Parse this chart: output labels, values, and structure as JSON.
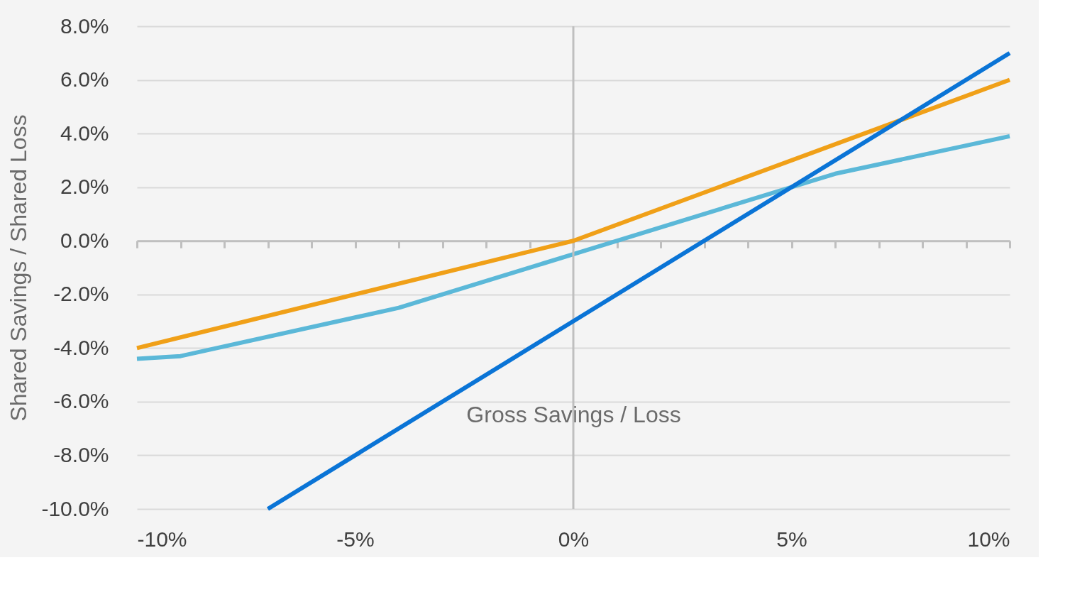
{
  "chart_data": {
    "type": "line",
    "xlabel": "Gross Savings / Loss",
    "ylabel": "Shared Savings / Shared Loss",
    "xlim": [
      -10,
      10
    ],
    "ylim": [
      -10,
      8
    ],
    "xticks": [
      {
        "value": -10,
        "label": "-10%"
      },
      {
        "value": -9,
        "label": null
      },
      {
        "value": -8,
        "label": null
      },
      {
        "value": -7,
        "label": null
      },
      {
        "value": -6,
        "label": null
      },
      {
        "value": -5,
        "label": "-5%"
      },
      {
        "value": -4,
        "label": null
      },
      {
        "value": -3,
        "label": null
      },
      {
        "value": -2,
        "label": null
      },
      {
        "value": -1,
        "label": null
      },
      {
        "value": 0,
        "label": "0%"
      },
      {
        "value": 1,
        "label": null
      },
      {
        "value": 2,
        "label": null
      },
      {
        "value": 3,
        "label": null
      },
      {
        "value": 4,
        "label": null
      },
      {
        "value": 5,
        "label": "5%"
      },
      {
        "value": 6,
        "label": null
      },
      {
        "value": 7,
        "label": null
      },
      {
        "value": 8,
        "label": null
      },
      {
        "value": 9,
        "label": null
      },
      {
        "value": 10,
        "label": "10%"
      }
    ],
    "yticks": [
      {
        "value": -10,
        "label": "-10.0%"
      },
      {
        "value": -8,
        "label": "-8.0%"
      },
      {
        "value": -6,
        "label": "-6.0%"
      },
      {
        "value": -4,
        "label": "-4.0%"
      },
      {
        "value": -2,
        "label": "-2.0%"
      },
      {
        "value": 0,
        "label": "0.0%"
      },
      {
        "value": 2,
        "label": "2.0%"
      },
      {
        "value": 4,
        "label": "4.0%"
      },
      {
        "value": 6,
        "label": "6.0%"
      },
      {
        "value": 8,
        "label": "8.0%"
      }
    ],
    "grid": "y",
    "marker": "none",
    "line_style": "solid",
    "ref_lines": [
      {
        "axis": "x",
        "value": 0,
        "color": "#bfbfbf"
      }
    ],
    "series": [
      {
        "color": "#5bb8d8",
        "x": [
          -10,
          -9,
          -4,
          0,
          6,
          10
        ],
        "values": [
          -4.4,
          -4.3,
          -2.5,
          -0.5,
          2.5,
          3.9
        ]
      },
      {
        "color": "#f0a018",
        "x": [
          -10,
          0,
          10
        ],
        "values": [
          -4.0,
          0.0,
          6.0
        ]
      },
      {
        "color": "#0a74d6",
        "x": [
          -7,
          0,
          10
        ],
        "values": [
          -10,
          -3,
          7
        ]
      }
    ]
  }
}
